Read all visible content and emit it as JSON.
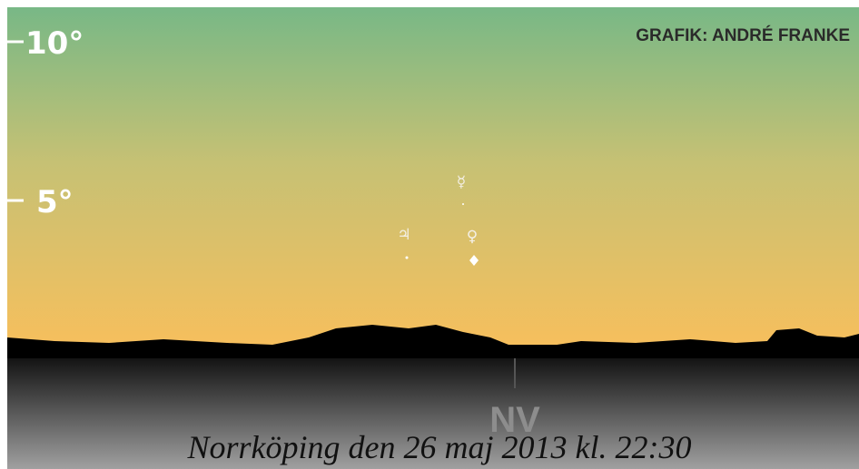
{
  "scale_labels": [
    "10°",
    "5°"
  ],
  "credit": "GRAFIK: ANDRÉ FRANKE",
  "direction": "NV",
  "planets": [
    {
      "symbol": "☿"
    },
    {
      "symbol": "♀"
    },
    {
      "symbol": "♃"
    }
  ],
  "caption": "Norrköping den 26 maj 2013  kl. 22:30"
}
